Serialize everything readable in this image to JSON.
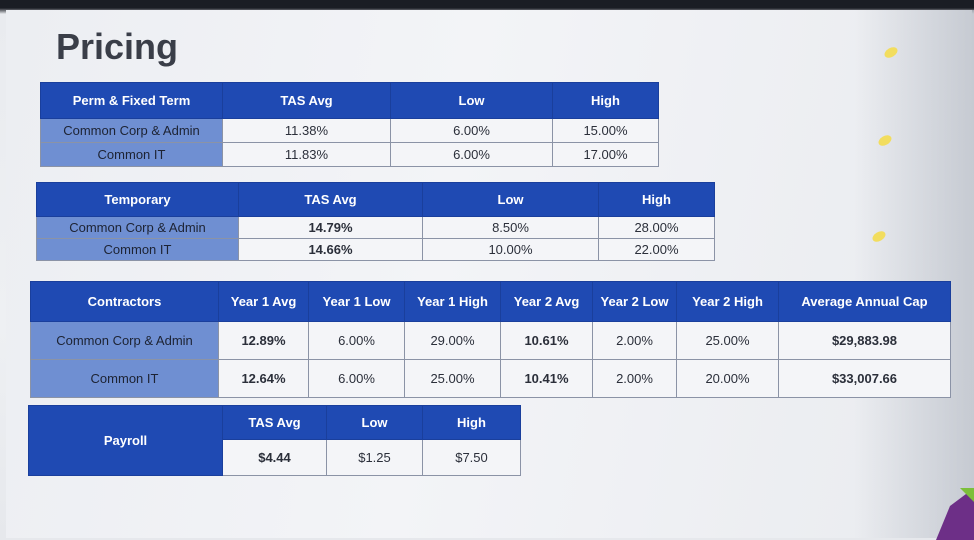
{
  "page_title": "Pricing",
  "colors": {
    "header_blue": "#1f4ab3",
    "row_label_blue": "#6f8fd2",
    "cell_bg": "#f4f5f8"
  },
  "perm": {
    "headers": [
      "Perm & Fixed Term",
      "TAS Avg",
      "Low",
      "High"
    ],
    "rows": [
      [
        "Common Corp & Admin",
        "11.38%",
        "6.00%",
        "15.00%"
      ],
      [
        "Common IT",
        "11.83%",
        "6.00%",
        "17.00%"
      ]
    ]
  },
  "temp": {
    "headers": [
      "Temporary",
      "TAS Avg",
      "Low",
      "High"
    ],
    "rows": [
      [
        "Common Corp & Admin",
        "14.79%",
        "8.50%",
        "28.00%"
      ],
      [
        "Common IT",
        "14.66%",
        "10.00%",
        "22.00%"
      ]
    ]
  },
  "contractors": {
    "headers": [
      "Contractors",
      "Year 1 Avg",
      "Year 1 Low",
      "Year 1 High",
      "Year 2 Avg",
      "Year 2 Low",
      "Year 2 High",
      "Average Annual Cap"
    ],
    "rows": [
      [
        "Common Corp & Admin",
        "12.89%",
        "6.00%",
        "29.00%",
        "10.61%",
        "2.00%",
        "25.00%",
        "$29,883.98"
      ],
      [
        "Common IT",
        "12.64%",
        "6.00%",
        "25.00%",
        "10.41%",
        "2.00%",
        "20.00%",
        "$33,007.66"
      ]
    ]
  },
  "payroll": {
    "label": "Payroll",
    "headers": [
      "TAS Avg",
      "Low",
      "High"
    ],
    "values": [
      "$4.44",
      "$1.25",
      "$7.50"
    ]
  }
}
